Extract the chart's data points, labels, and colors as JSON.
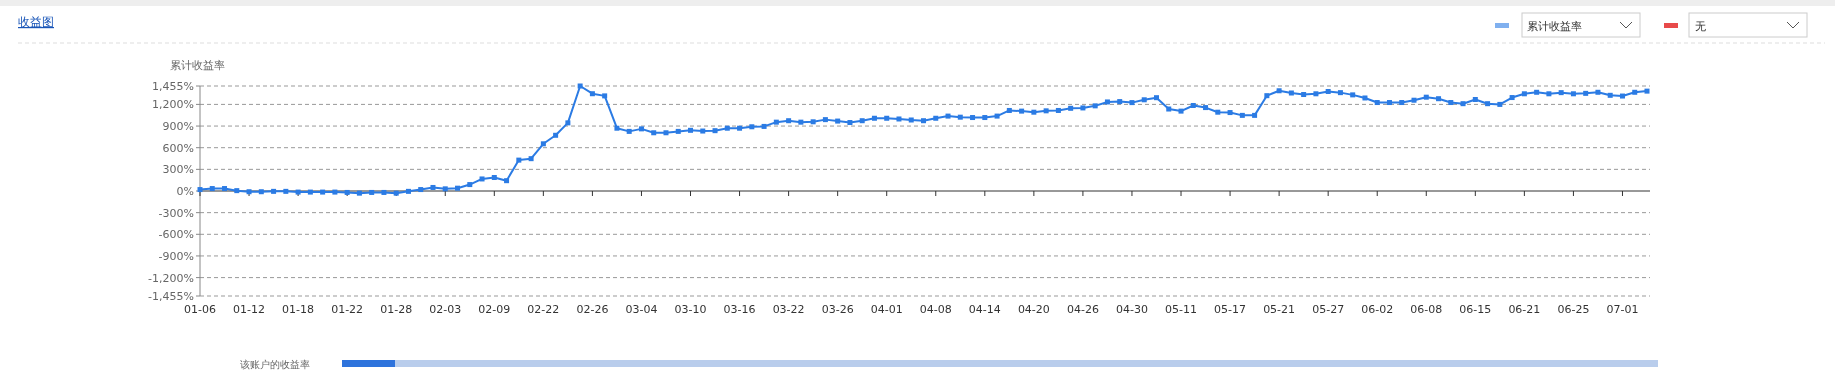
{
  "chart_data": {
    "type": "line",
    "title": "收益图",
    "ylabel": "累计收益率",
    "annotations": [
      "无",
      "该账户的收益率"
    ],
    "categories": [
      "01-06",
      null,
      null,
      null,
      "01-12",
      null,
      null,
      null,
      "01-18",
      null,
      null,
      null,
      "01-22",
      null,
      null,
      null,
      "01-28",
      null,
      null,
      null,
      "02-03",
      null,
      null,
      null,
      "02-09",
      null,
      null,
      null,
      "02-22",
      null,
      null,
      null,
      "02-26",
      null,
      null,
      null,
      "03-04",
      null,
      null,
      null,
      "03-10",
      null,
      null,
      null,
      "03-16",
      null,
      null,
      null,
      "03-22",
      null,
      null,
      null,
      "03-26",
      null,
      null,
      null,
      "04-01",
      null,
      null,
      null,
      "04-08",
      null,
      null,
      null,
      "04-14",
      null,
      null,
      null,
      "04-20",
      null,
      null,
      null,
      "04-26",
      null,
      null,
      null,
      "04-30",
      null,
      null,
      null,
      "05-11",
      null,
      null,
      null,
      "05-17",
      null,
      null,
      null,
      "05-21",
      null,
      null,
      null,
      "05-27",
      null,
      null,
      null,
      "06-02",
      null,
      null,
      null,
      "06-08",
      null,
      null,
      null,
      "06-15",
      null,
      null,
      null,
      "06-21",
      null,
      null,
      null,
      "06-25",
      null,
      null,
      null,
      "07-01",
      null,
      null
    ],
    "series": [
      {
        "name": "累计收益率",
        "color": "#2b7be4",
        "values": [
          20,
          34,
          34,
          5,
          -10,
          -10,
          -5,
          -5,
          -15,
          -15,
          -15,
          -15,
          -20,
          -30,
          -20,
          -20,
          -30,
          -5,
          20,
          49,
          30,
          39,
          89,
          167,
          187,
          143,
          428,
          448,
          654,
          772,
          944,
          1455,
          1348,
          1318,
          870,
          826,
          861,
          807,
          807,
          826,
          841,
          831,
          836,
          870,
          870,
          890,
          895,
          954,
          974,
          954,
          959,
          989,
          969,
          949,
          974,
          1008,
          1008,
          998,
          984,
          974,
          1008,
          1038,
          1023,
          1018,
          1018,
          1038,
          1116,
          1107,
          1092,
          1111,
          1116,
          1146,
          1151,
          1180,
          1234,
          1239,
          1225,
          1264,
          1293,
          1136,
          1107,
          1185,
          1156,
          1092,
          1087,
          1048,
          1048,
          1321,
          1389,
          1358,
          1337,
          1347,
          1379,
          1363,
          1332,
          1289,
          1226,
          1226,
          1226,
          1258,
          1300,
          1279,
          1226,
          1210,
          1268,
          1210,
          1200,
          1295,
          1347,
          1368,
          1347,
          1363,
          1347,
          1353,
          1368,
          1326,
          1316,
          1368,
          1384
        ]
      }
    ],
    "ylim": [
      -1455,
      1455
    ],
    "yticks": [
      {
        "value": 1455,
        "label": "1,455%"
      },
      {
        "value": 1200,
        "label": "1,200%"
      },
      {
        "value": 900,
        "label": "900%"
      },
      {
        "value": 600,
        "label": "600%"
      },
      {
        "value": 300,
        "label": "300%"
      },
      {
        "value": 0,
        "label": "0%"
      },
      {
        "value": -300,
        "label": "-300%"
      },
      {
        "value": -600,
        "label": "-600%"
      },
      {
        "value": -900,
        "label": "-900%"
      },
      {
        "value": -1200,
        "label": "-1,200%"
      },
      {
        "value": -1455,
        "label": "-1,455%"
      }
    ],
    "grid": "y",
    "legend": "top right",
    "marker": "square",
    "line_style": "solid"
  }
}
